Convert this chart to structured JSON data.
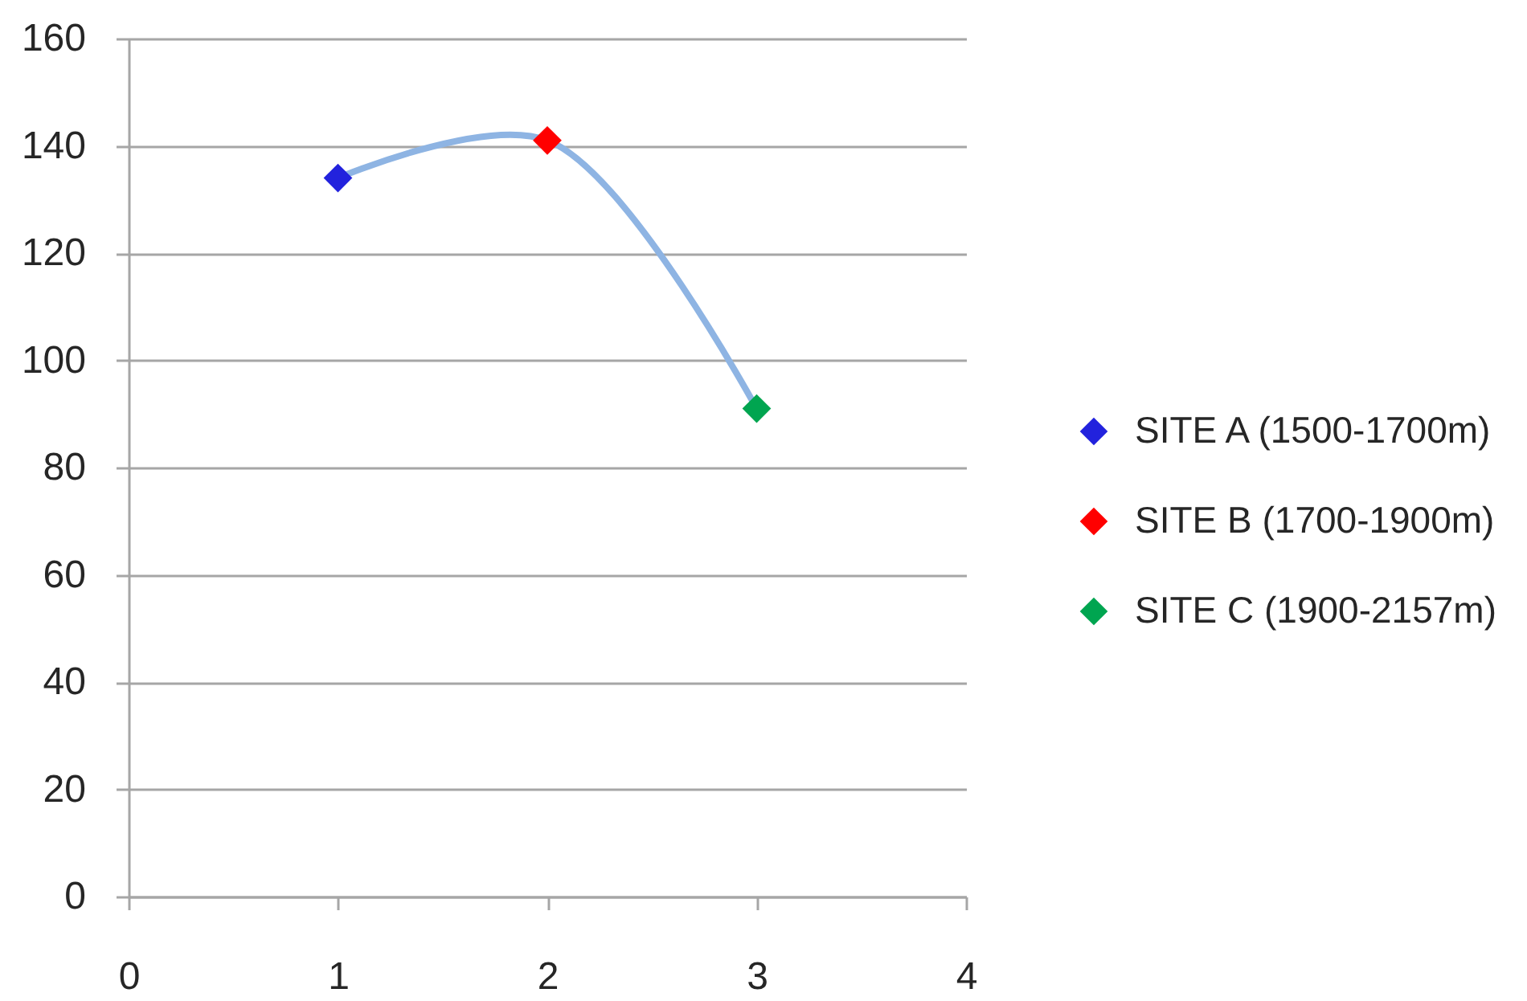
{
  "chart_data": {
    "type": "line",
    "series": [
      {
        "color": "#8eb4e3",
        "marker": "none",
        "x": [
          1,
          2,
          3
        ],
        "values": [
          134,
          141,
          91
        ]
      },
      {
        "name": "SITE A (1500-1700m)",
        "type": "scatter",
        "color": "#2222dd",
        "x": [
          1
        ],
        "values": [
          134
        ]
      },
      {
        "name": "SITE B (1700-1900m)",
        "type": "scatter",
        "color": "#ff0000",
        "x": [
          2
        ],
        "values": [
          141
        ]
      },
      {
        "name": "SITE C (1900-2157m)",
        "type": "scatter",
        "color": "#00a550",
        "x": [
          3
        ],
        "values": [
          91
        ]
      }
    ],
    "xlim": [
      0,
      4
    ],
    "xticks": [
      0,
      1,
      2,
      3,
      4
    ],
    "ylim": [
      0,
      160
    ],
    "yticks": [
      0,
      20,
      40,
      60,
      80,
      100,
      120,
      140,
      160
    ],
    "grid": "y",
    "legend": "right",
    "marker": "diamond"
  }
}
